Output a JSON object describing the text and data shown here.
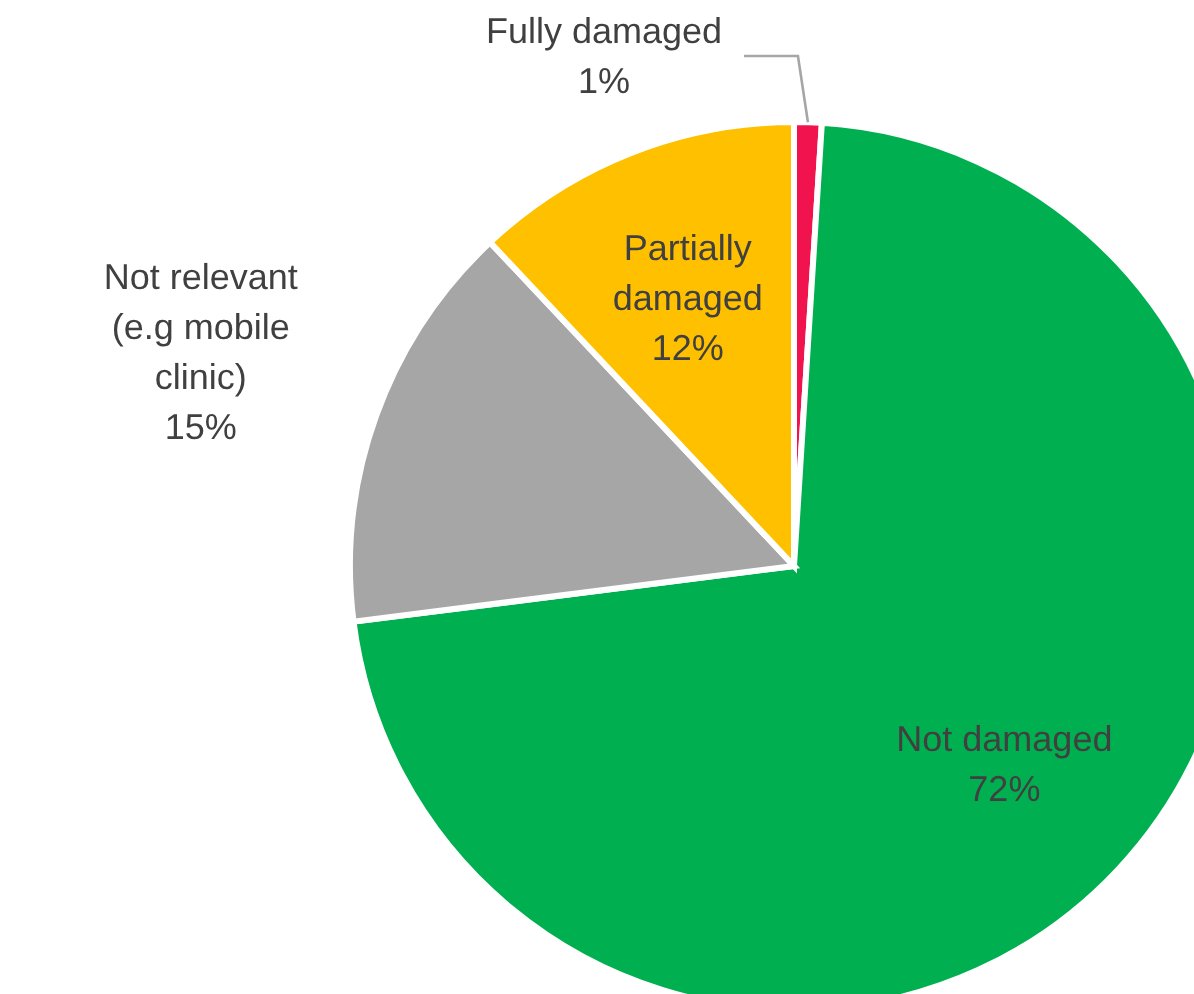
{
  "chart_data": {
    "type": "pie",
    "categories": [
      "Fully damaged",
      "Not damaged",
      "Not relevant (e.g mobile clinic)",
      "Partially damaged"
    ],
    "values": [
      1,
      72,
      15,
      12
    ],
    "value_labels": [
      "1%",
      "72%",
      "15%",
      "12%"
    ],
    "colors": [
      "#f0134d",
      "#00b050",
      "#a6a6a6",
      "#ffc000"
    ],
    "legend": false
  }
}
